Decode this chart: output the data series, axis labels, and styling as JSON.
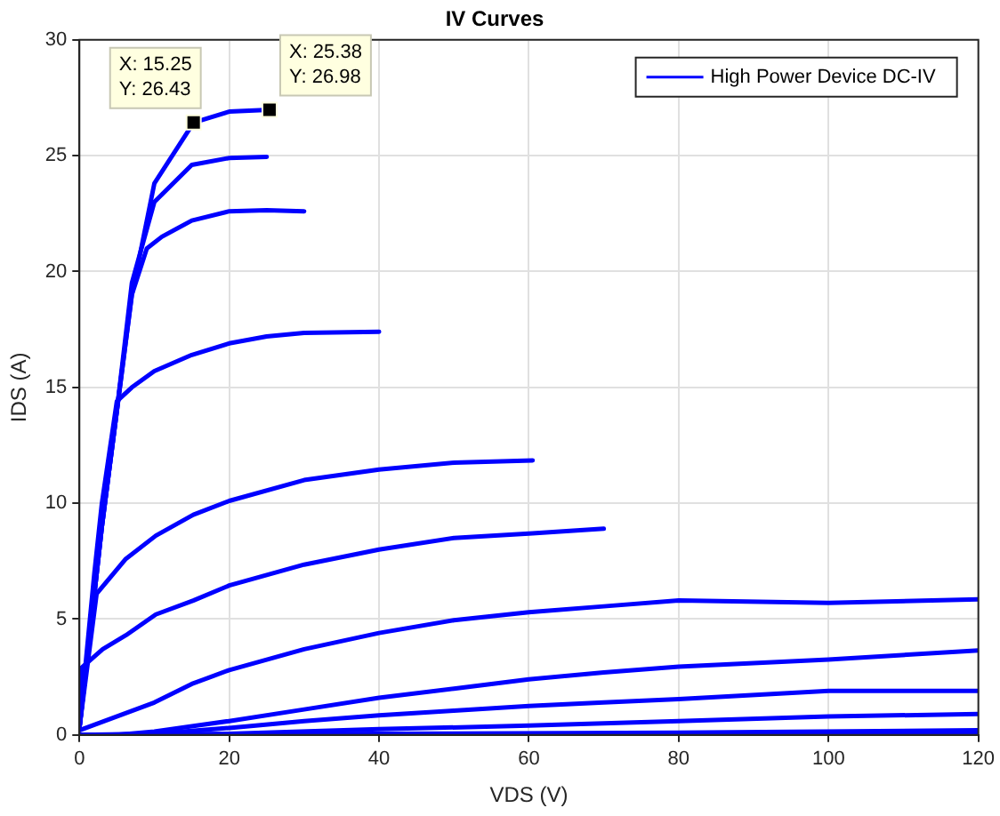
{
  "chart_data": {
    "type": "line",
    "title": "IV Curves",
    "xlabel": "VDS (V)",
    "ylabel": "IDS (A)",
    "xlim": [
      0,
      120
    ],
    "xticks": [
      0,
      20,
      40,
      60,
      80,
      100,
      120
    ],
    "ylim": [
      0,
      30
    ],
    "yticks": [
      0,
      5,
      10,
      15,
      20,
      25,
      30
    ],
    "grid": true,
    "legend": "top right",
    "marker": "none",
    "line_style": "solid",
    "annotations": [
      {
        "text": "X: 15.25\nY: 26.43",
        "x": 15.25,
        "y": 26.43
      },
      {
        "text": "X: 25.38\nY: 26.98",
        "x": 25.38,
        "y": 26.98
      }
    ],
    "series": [
      {
        "name": "High Power Device DC-IV",
        "color": "#0000ff",
        "x": [
          0,
          3,
          5,
          7,
          10,
          15.25,
          20,
          25.38
        ],
        "values": [
          0.3,
          9,
          14,
          19,
          23.8,
          26.43,
          26.9,
          26.98
        ]
      },
      {
        "color": "#0000ff",
        "x": [
          0,
          3,
          5,
          7,
          10,
          15,
          20,
          25
        ],
        "values": [
          0.3,
          9,
          14,
          19.5,
          23,
          24.6,
          24.9,
          24.95
        ]
      },
      {
        "color": "#0000ff",
        "x": [
          0,
          3,
          5,
          7,
          9,
          11,
          15,
          20,
          25,
          30
        ],
        "values": [
          0.3,
          9,
          14,
          19,
          21,
          21.5,
          22.2,
          22.6,
          22.65,
          22.6
        ]
      },
      {
        "color": "#0000ff",
        "x": [
          0,
          2,
          3,
          5,
          7,
          10,
          15,
          20,
          25,
          30,
          40
        ],
        "values": [
          0.3,
          7,
          10,
          14.4,
          15,
          15.7,
          16.4,
          16.9,
          17.2,
          17.35,
          17.4
        ]
      },
      {
        "color": "#0000ff",
        "x": [
          0,
          2.3,
          6.2,
          10.2,
          15.2,
          20,
          30,
          40,
          50,
          60.5
        ],
        "values": [
          0.3,
          6.1,
          7.6,
          8.6,
          9.5,
          10.1,
          11,
          11.45,
          11.75,
          11.85
        ]
      },
      {
        "color": "#0000ff",
        "x": [
          0,
          0.3,
          3.1,
          6.2,
          10.2,
          15.2,
          20,
          30,
          40,
          50,
          60.5,
          70
        ],
        "values": [
          0.3,
          2.9,
          3.7,
          4.3,
          5.2,
          5.8,
          6.45,
          7.35,
          8,
          8.5,
          8.7,
          8.9
        ]
      },
      {
        "color": "#0000ff",
        "x": [
          0,
          10,
          15,
          20,
          30,
          40,
          50,
          60,
          70,
          80,
          100,
          120
        ],
        "values": [
          0.2,
          1.4,
          2.2,
          2.8,
          3.7,
          4.4,
          4.95,
          5.3,
          5.55,
          5.8,
          5.7,
          5.85
        ]
      },
      {
        "color": "#0000ff",
        "x": [
          0,
          5,
          10,
          20,
          30,
          40,
          50,
          60,
          70,
          80,
          100,
          120
        ],
        "values": [
          0,
          0,
          0.15,
          0.6,
          1.1,
          1.6,
          2,
          2.4,
          2.7,
          2.95,
          3.25,
          3.65
        ]
      },
      {
        "color": "#0000ff",
        "x": [
          0,
          10,
          20,
          30,
          40,
          50,
          60,
          70,
          80,
          100,
          120
        ],
        "values": [
          0,
          0.05,
          0.3,
          0.6,
          0.85,
          1.05,
          1.25,
          1.4,
          1.55,
          1.9,
          1.9
        ]
      },
      {
        "color": "#0000ff",
        "x": [
          0,
          20,
          40,
          60,
          80,
          100,
          120
        ],
        "values": [
          0,
          0.05,
          0.25,
          0.4,
          0.6,
          0.8,
          0.9
        ]
      },
      {
        "color": "#0000ff",
        "x": [
          0,
          40,
          80,
          120
        ],
        "values": [
          0,
          0.05,
          0.1,
          0.2
        ]
      },
      {
        "color": "#0000ff",
        "x": [
          0,
          120
        ],
        "values": [
          0,
          0.05
        ]
      }
    ]
  }
}
